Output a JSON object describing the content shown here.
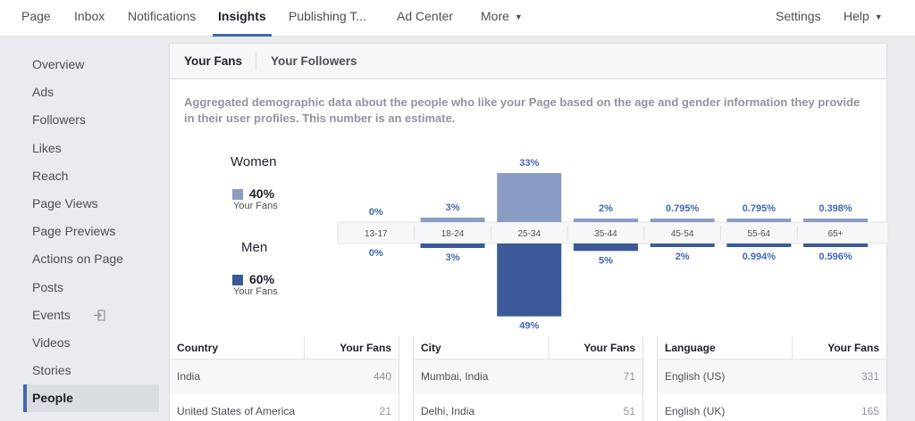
{
  "topnav": {
    "tabs": [
      {
        "label": "Page"
      },
      {
        "label": "Inbox"
      },
      {
        "label": "Notifications"
      },
      {
        "label": "Insights"
      },
      {
        "label": "Publishing T..."
      },
      {
        "label": "Ad Center"
      },
      {
        "label": "More"
      }
    ],
    "settings": "Settings",
    "help": "Help"
  },
  "sidebar": {
    "items": [
      {
        "label": "Overview"
      },
      {
        "label": "Ads"
      },
      {
        "label": "Followers"
      },
      {
        "label": "Likes"
      },
      {
        "label": "Reach"
      },
      {
        "label": "Page Views"
      },
      {
        "label": "Page Previews"
      },
      {
        "label": "Actions on Page"
      },
      {
        "label": "Posts"
      },
      {
        "label": "Events"
      },
      {
        "label": "Videos"
      },
      {
        "label": "Stories"
      },
      {
        "label": "People"
      }
    ]
  },
  "card": {
    "tabs": {
      "fans": "Your Fans",
      "followers": "Your Followers"
    },
    "description": "Aggregated demographic data about the people who like your Page based on the age and gender information they provide in their user profiles. This number is an estimate."
  },
  "legend": {
    "women": {
      "title": "Women",
      "pct": "40%",
      "sub": "Your Fans",
      "color": "#8b9dc3"
    },
    "men": {
      "title": "Men",
      "pct": "60%",
      "sub": "Your Fans",
      "color": "#3b5998"
    }
  },
  "chart_data": {
    "type": "bar",
    "categories": [
      "13-17",
      "18-24",
      "25-34",
      "35-44",
      "45-54",
      "55-64",
      "65+"
    ],
    "series": [
      {
        "name": "Women",
        "values": [
          0,
          3,
          33,
          2,
          0.795,
          0.795,
          0.398
        ],
        "labels": [
          "0%",
          "3%",
          "33%",
          "2%",
          "0.795%",
          "0.795%",
          "0.398%"
        ],
        "color": "#8b9dc3"
      },
      {
        "name": "Men",
        "values": [
          0,
          3,
          49,
          5,
          2,
          0.994,
          0.596
        ],
        "labels": [
          "0%",
          "3%",
          "49%",
          "5%",
          "2%",
          "0.994%",
          "0.596%"
        ],
        "color": "#3b5998"
      }
    ],
    "label_color": "#4267b2"
  },
  "tables": [
    {
      "col1": "Country",
      "col2": "Your Fans",
      "rows": [
        {
          "name": "India",
          "value": "440"
        },
        {
          "name": "United States of America",
          "value": "21"
        }
      ]
    },
    {
      "col1": "City",
      "col2": "Your Fans",
      "rows": [
        {
          "name": "Mumbai, India",
          "value": "71"
        },
        {
          "name": "Delhi, India",
          "value": "51"
        }
      ]
    },
    {
      "col1": "Language",
      "col2": "Your Fans",
      "rows": [
        {
          "name": "English (US)",
          "value": "331"
        },
        {
          "name": "English (UK)",
          "value": "165"
        }
      ]
    }
  ]
}
